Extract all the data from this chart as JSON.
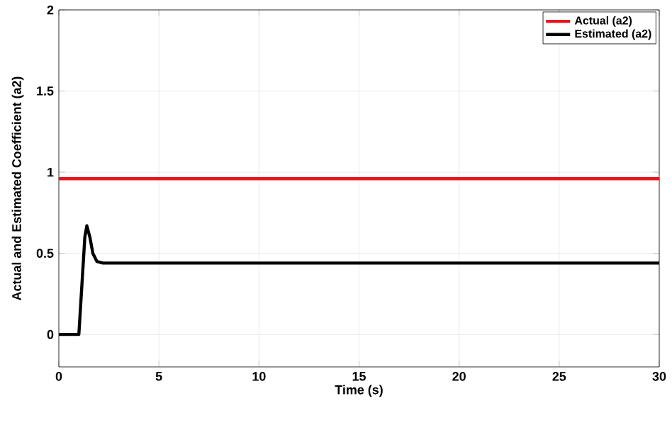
{
  "chart_data": {
    "type": "line",
    "xlabel": "Time (s)",
    "ylabel": "Actual and Estimated Coefficient (a2)",
    "xlim": [
      0,
      30
    ],
    "ylim": [
      -0.2,
      2
    ],
    "xticks": [
      0,
      5,
      10,
      15,
      20,
      25,
      30
    ],
    "yticks": [
      0,
      0.5,
      1,
      1.5,
      2
    ],
    "grid": true,
    "legend": "top right",
    "line_style": "solid",
    "series": [
      {
        "name": "Actual (a2)",
        "color": "#e8141c",
        "x": [
          0,
          30
        ],
        "values": [
          0.96,
          0.96
        ]
      },
      {
        "name": "Estimated (a2)",
        "color": "#000000",
        "x": [
          0,
          0.5,
          1.0,
          1.15,
          1.3,
          1.4,
          1.55,
          1.7,
          1.9,
          2.2,
          3,
          30
        ],
        "values": [
          0,
          0,
          0,
          0.3,
          0.6,
          0.67,
          0.6,
          0.5,
          0.45,
          0.44,
          0.44,
          0.44
        ]
      }
    ]
  }
}
